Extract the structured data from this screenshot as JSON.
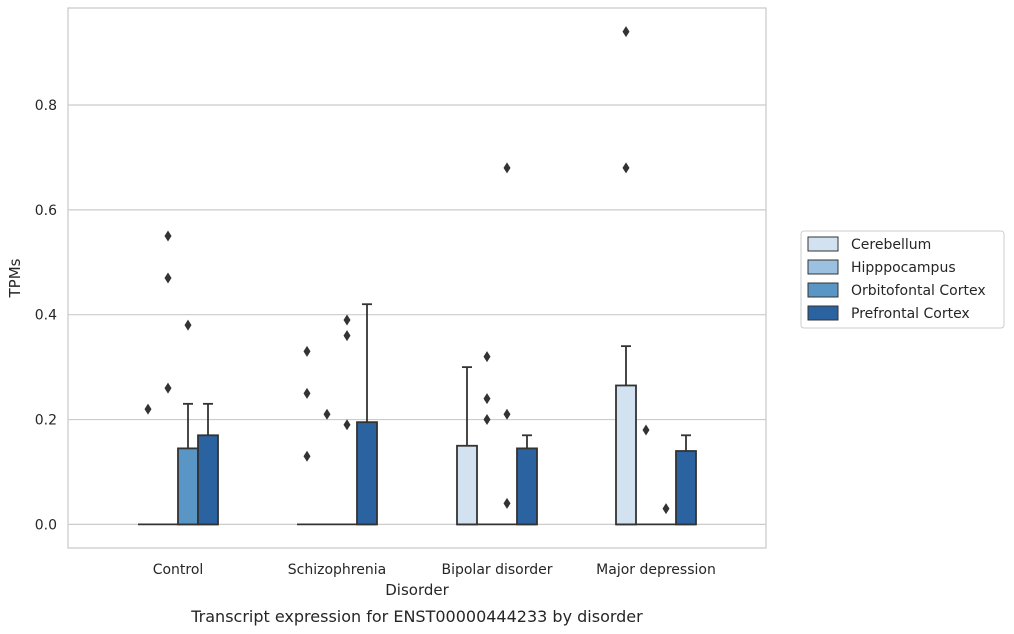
{
  "chart_data": {
    "type": "boxplot",
    "caption": "Transcript expression for ENST00000444233 by disorder",
    "xlabel": "Disorder",
    "ylabel": "TPMs",
    "ylim": [
      -0.045,
      0.985
    ],
    "yticks": [
      0.0,
      0.2,
      0.4,
      0.6,
      0.8
    ],
    "ytick_labels": [
      "0.0",
      "0.2",
      "0.4",
      "0.6",
      "0.8"
    ],
    "grid": "horizontal",
    "legend_position": "right",
    "categories": [
      "Control",
      "Schizophrenia",
      "Bipolar disorder",
      "Major depression"
    ],
    "series": [
      {
        "name": "Cerebellum",
        "color": "#d3e2f1"
      },
      {
        "name": "Hipppocampus",
        "color": "#9cc1e0"
      },
      {
        "name": "Orbitofontal Cortex",
        "color": "#5996c6"
      },
      {
        "name": "Prefrontal Cortex",
        "color": "#2b62a0"
      }
    ],
    "boxes": [
      [
        {
          "q1": 0,
          "med": 0,
          "q3": 0,
          "whislo": 0,
          "whishi": 0,
          "fliers": [
            0.22
          ]
        },
        {
          "q1": 0,
          "med": 0,
          "q3": 0,
          "whislo": 0,
          "whishi": 0,
          "fliers": [
            0.26,
            0.47,
            0.55
          ]
        },
        {
          "q1": 0,
          "med": 0,
          "q3": 0.145,
          "whislo": 0,
          "whishi": 0.23,
          "fliers": [
            0.38
          ]
        },
        {
          "q1": 0,
          "med": 0,
          "q3": 0.17,
          "whislo": 0,
          "whishi": 0.23,
          "fliers": []
        }
      ],
      [
        {
          "q1": 0,
          "med": 0,
          "q3": 0,
          "whislo": 0,
          "whishi": 0,
          "fliers": [
            0.13,
            0.25,
            0.33
          ]
        },
        {
          "q1": 0,
          "med": 0,
          "q3": 0,
          "whislo": 0,
          "whishi": 0,
          "fliers": [
            0.21
          ]
        },
        {
          "q1": 0,
          "med": 0,
          "q3": 0,
          "whislo": 0,
          "whishi": 0,
          "fliers": [
            0.19,
            0.36,
            0.39
          ]
        },
        {
          "q1": 0,
          "med": 0,
          "q3": 0.195,
          "whislo": 0,
          "whishi": 0.42,
          "fliers": []
        }
      ],
      [
        {
          "q1": 0,
          "med": 0,
          "q3": 0.15,
          "whislo": 0,
          "whishi": 0.3,
          "fliers": []
        },
        {
          "q1": 0,
          "med": 0,
          "q3": 0,
          "whislo": 0,
          "whishi": 0,
          "fliers": [
            0.2,
            0.24,
            0.32
          ]
        },
        {
          "q1": 0,
          "med": 0,
          "q3": 0,
          "whislo": 0,
          "whishi": 0,
          "fliers": [
            0.04,
            0.21,
            0.68
          ]
        },
        {
          "q1": 0,
          "med": 0,
          "q3": 0.145,
          "whislo": 0,
          "whishi": 0.17,
          "fliers": []
        }
      ],
      [
        {
          "q1": 0,
          "med": 0,
          "q3": 0.265,
          "whislo": 0,
          "whishi": 0.34,
          "fliers": [
            0.68,
            0.94
          ]
        },
        {
          "q1": 0,
          "med": 0,
          "q3": 0,
          "whislo": 0,
          "whishi": 0,
          "fliers": [
            0.18
          ]
        },
        {
          "q1": 0,
          "med": 0,
          "q3": 0,
          "whislo": 0,
          "whishi": 0,
          "fliers": [
            0.03
          ]
        },
        {
          "q1": 0,
          "med": 0,
          "q3": 0.14,
          "whislo": 0,
          "whishi": 0.17,
          "fliers": []
        }
      ]
    ],
    "colors": {
      "grid": "#cccccc",
      "frame": "#cccccc",
      "stroke": "#333333",
      "flier": "#333333"
    }
  }
}
